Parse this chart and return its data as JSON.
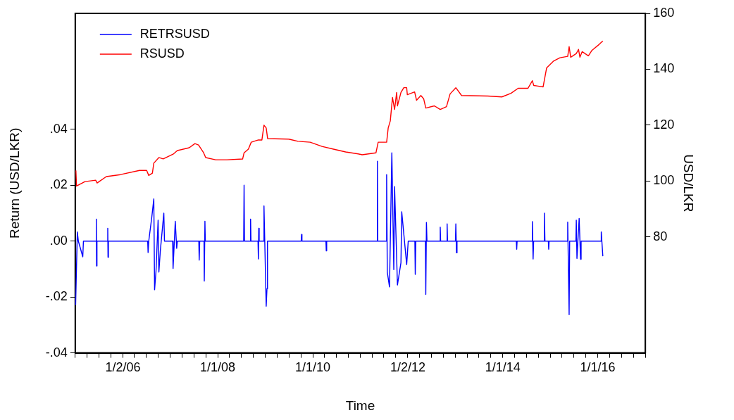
{
  "chart_data": {
    "type": "line",
    "xlabel": "Time",
    "ylabel": "Return (USD/LKR)",
    "y2label": "USD/LKR",
    "xlim": [
      "2005-01-01",
      "2017-01-01"
    ],
    "xticks": [
      {
        "value": "2005-01-01",
        "label": null
      },
      {
        "value": "2005-04-01",
        "label": null
      },
      {
        "value": "2005-07-01",
        "label": null
      },
      {
        "value": "2005-10-01",
        "label": null
      },
      {
        "value": "2006-01-02",
        "label": "1/2/06"
      },
      {
        "value": "2006-04-01",
        "label": null
      },
      {
        "value": "2006-07-01",
        "label": null
      },
      {
        "value": "2006-10-01",
        "label": null
      },
      {
        "value": "2007-01-01",
        "label": null
      },
      {
        "value": "2007-04-01",
        "label": null
      },
      {
        "value": "2007-07-01",
        "label": null
      },
      {
        "value": "2007-10-01",
        "label": null
      },
      {
        "value": "2008-01-01",
        "label": "1/1/08"
      },
      {
        "value": "2008-04-01",
        "label": null
      },
      {
        "value": "2008-07-01",
        "label": null
      },
      {
        "value": "2008-10-01",
        "label": null
      },
      {
        "value": "2009-01-01",
        "label": null
      },
      {
        "value": "2009-04-01",
        "label": null
      },
      {
        "value": "2009-07-01",
        "label": null
      },
      {
        "value": "2009-10-01",
        "label": null
      },
      {
        "value": "2010-01-01",
        "label": "1/1/10"
      },
      {
        "value": "2010-04-01",
        "label": null
      },
      {
        "value": "2010-07-01",
        "label": null
      },
      {
        "value": "2010-10-01",
        "label": null
      },
      {
        "value": "2011-01-01",
        "label": null
      },
      {
        "value": "2011-04-01",
        "label": null
      },
      {
        "value": "2011-07-01",
        "label": null
      },
      {
        "value": "2011-10-01",
        "label": null
      },
      {
        "value": "2012-01-02",
        "label": "1/2/12"
      },
      {
        "value": "2012-04-01",
        "label": null
      },
      {
        "value": "2012-07-01",
        "label": null
      },
      {
        "value": "2012-10-01",
        "label": null
      },
      {
        "value": "2013-01-01",
        "label": null
      },
      {
        "value": "2013-04-01",
        "label": null
      },
      {
        "value": "2013-07-01",
        "label": null
      },
      {
        "value": "2013-10-01",
        "label": null
      },
      {
        "value": "2014-01-01",
        "label": "1/1/14"
      },
      {
        "value": "2014-04-01",
        "label": null
      },
      {
        "value": "2014-07-01",
        "label": null
      },
      {
        "value": "2014-10-01",
        "label": null
      },
      {
        "value": "2015-01-01",
        "label": null
      },
      {
        "value": "2015-04-01",
        "label": null
      },
      {
        "value": "2015-07-01",
        "label": null
      },
      {
        "value": "2015-10-01",
        "label": null
      },
      {
        "value": "2016-01-01",
        "label": "1/1/16"
      },
      {
        "value": "2016-04-01",
        "label": null
      },
      {
        "value": "2016-07-01",
        "label": null
      },
      {
        "value": "2016-10-01",
        "label": null
      },
      {
        "value": "2017-01-01",
        "label": null
      }
    ],
    "ylim": [
      -0.04,
      0.0815
    ],
    "yticks": [
      {
        "value": -0.04,
        "label": "-.04"
      },
      {
        "value": -0.02,
        "label": "-.02"
      },
      {
        "value": 0,
        "label": ".00"
      },
      {
        "value": 0.02,
        "label": ".02"
      },
      {
        "value": 0.04,
        "label": ".04"
      }
    ],
    "y2lim": [
      38.5,
      160
    ],
    "y2ticks": [
      80,
      100,
      120,
      140,
      160
    ],
    "legend": "top left",
    "series": [
      {
        "name": "RETRSUSD",
        "color": "#0000ff",
        "x": [
          "2005-01-04",
          "2005-01-17",
          "2005-01-25",
          "2005-02-28",
          "2005-03-05",
          "2005-06-10",
          "2005-06-12",
          "2005-06-14",
          "2005-06-17",
          "2005-09-05",
          "2005-09-08",
          "2005-09-10",
          "2005-09-13",
          "2006-07-12",
          "2006-07-15",
          "2006-07-20",
          "2006-08-12",
          "2006-08-28",
          "2006-09-03",
          "2006-09-14",
          "2006-09-30",
          "2006-10-06",
          "2006-10-17",
          "2006-11-13",
          "2006-11-18",
          "2007-01-20",
          "2007-01-23",
          "2007-02-09",
          "2007-02-20",
          "2007-02-25",
          "2007-08-09",
          "2007-08-12",
          "2007-08-16",
          "2007-09-18",
          "2007-09-20",
          "2007-09-25",
          "2007-09-28",
          "2008-07-19",
          "2008-07-22",
          "2008-07-25",
          "2008-09-07",
          "2008-09-10",
          "2008-09-13",
          "2008-11-06",
          "2008-11-09",
          "2008-11-12",
          "2008-11-15",
          "2008-12-19",
          "2008-12-22",
          "2009-01-08",
          "2009-01-14",
          "2009-01-18",
          "2009-10-04",
          "2009-10-07",
          "2009-10-10",
          "2010-04-12",
          "2010-04-15",
          "2010-04-18",
          "2011-05-10",
          "2011-05-13",
          "2011-05-16",
          "2011-07-20",
          "2011-07-23",
          "2011-07-28",
          "2011-08-14",
          "2011-09-01",
          "2011-09-16",
          "2011-09-22",
          "2011-10-14",
          "2011-11-10",
          "2011-11-16",
          "2011-12-24",
          "2012-01-05",
          "2012-02-25",
          "2012-02-28",
          "2012-03-03",
          "2012-05-16",
          "2012-05-19",
          "2012-05-24",
          "2012-05-28",
          "2012-09-04",
          "2012-09-07",
          "2012-09-10",
          "2012-10-27",
          "2012-10-30",
          "2012-11-02",
          "2013-01-02",
          "2013-01-05",
          "2013-01-10",
          "2013-01-14",
          "2014-04-15",
          "2014-04-18",
          "2014-04-21",
          "2014-08-13",
          "2014-08-16",
          "2014-08-22",
          "2014-08-26",
          "2014-11-14",
          "2014-11-17",
          "2014-11-21",
          "2014-12-17",
          "2014-12-20",
          "2014-12-23",
          "2015-05-12",
          "2015-05-15",
          "2015-05-26",
          "2015-05-30",
          "2015-07-17",
          "2015-07-20",
          "2015-07-25",
          "2015-08-11",
          "2015-08-22",
          "2015-08-26",
          "2016-01-25",
          "2016-01-28",
          "2016-02-09"
        ],
        "values": [
          -0.0229,
          0.0033,
          0,
          -0.0056,
          0,
          0,
          0.0079,
          -0.0089,
          0,
          0,
          0.0046,
          -0.0058,
          0,
          0,
          -0.0041,
          0,
          0.0084,
          0.0151,
          -0.0174,
          -0.0106,
          0.0075,
          -0.0111,
          -0.0035,
          0.01,
          0,
          0,
          -0.0098,
          0.0071,
          -0.0026,
          0,
          0,
          -0.0068,
          0,
          0,
          -0.0143,
          0.0071,
          0,
          0,
          0.02,
          0,
          0,
          0.0079,
          0,
          0,
          -0.0064,
          0.0046,
          0,
          0,
          0.0126,
          -0.0233,
          -0.017,
          0,
          0,
          0.0024,
          0,
          0,
          -0.0035,
          0,
          0,
          0.0286,
          0,
          0,
          0.0238,
          -0.0111,
          -0.0164,
          0.0316,
          -0.0102,
          0.0195,
          -0.0157,
          -0.0077,
          0.0105,
          -0.0084,
          0,
          0,
          -0.0119,
          0,
          0,
          -0.0191,
          0.0067,
          0,
          0,
          0.005,
          0,
          0,
          0.0062,
          0,
          0,
          0.0062,
          -0.0042,
          0,
          0,
          -0.0029,
          0,
          0,
          0.007,
          -0.0064,
          0,
          0,
          0.01,
          0,
          0,
          -0.0029,
          0,
          0,
          0.0068,
          -0.0263,
          0,
          0,
          0.0075,
          -0.0062,
          0.0081,
          -0.0065,
          0,
          0,
          0.0033,
          -0.0054
        ]
      },
      {
        "name": "RSUSD",
        "color": "#ff0000",
        "axis": "y2",
        "x": [
          "2005-01-06",
          "2005-01-11",
          "2005-03-17",
          "2005-06-07",
          "2005-06-18",
          "2005-08-28",
          "2005-12-15",
          "2006-05-10",
          "2006-07-04",
          "2006-07-20",
          "2006-08-17",
          "2006-08-28",
          "2006-10-06",
          "2006-11-08",
          "2007-01-23",
          "2007-02-25",
          "2007-05-27",
          "2007-07-10",
          "2007-08-07",
          "2007-09-15",
          "2007-10-01",
          "2007-12-16",
          "2008-03-12",
          "2008-07-11",
          "2008-07-22",
          "2008-08-24",
          "2008-09-15",
          "2008-11-09",
          "2008-12-06",
          "2008-12-22",
          "2009-01-08",
          "2009-01-19",
          "2009-06-30",
          "2009-09-10",
          "2009-12-12",
          "2010-03-13",
          "2010-06-09",
          "2010-09-11",
          "2010-12-29",
          "2011-01-15",
          "2011-05-02",
          "2011-05-19",
          "2011-07-23",
          "2011-08-04",
          "2011-08-20",
          "2011-09-06",
          "2011-09-22",
          "2011-10-08",
          "2011-10-14",
          "2011-11-10",
          "2011-12-02",
          "2011-12-24",
          "2011-12-29",
          "2012-02-23",
          "2012-03-09",
          "2012-04-11",
          "2012-05-03",
          "2012-05-19",
          "2012-07-24",
          "2012-09-07",
          "2012-10-25",
          "2012-11-22",
          "2013-01-05",
          "2013-02-18",
          "2013-09-07",
          "2013-12-25",
          "2014-03-05",
          "2014-04-29",
          "2014-07-14",
          "2014-08-16",
          "2014-08-27",
          "2014-11-07",
          "2014-12-04",
          "2015-01-28",
          "2015-03-16",
          "2015-05-15",
          "2015-05-26",
          "2015-06-07",
          "2015-07-20",
          "2015-08-06",
          "2015-08-17",
          "2015-09-03",
          "2015-10-21",
          "2015-11-18",
          "2016-01-12",
          "2016-02-09"
        ],
        "values": [
          103.8,
          98.2,
          99.8,
          100.3,
          99.3,
          101.6,
          102.3,
          103.8,
          103.8,
          102,
          102.8,
          106.4,
          108.4,
          107.9,
          109.6,
          110.9,
          111.9,
          113.4,
          112.9,
          110.1,
          108.4,
          107.6,
          107.6,
          107.9,
          110.1,
          111.4,
          113.9,
          114.7,
          114.7,
          120,
          119,
          115.2,
          115,
          114.2,
          113.9,
          112.4,
          111.4,
          110.4,
          109.6,
          109.4,
          110.1,
          113.9,
          113.9,
          119,
          121.5,
          129.9,
          125.6,
          131.7,
          126.9,
          131.7,
          133.4,
          133.4,
          130.9,
          131.9,
          128.9,
          130.6,
          129.4,
          126.1,
          126.9,
          125.6,
          126.6,
          131.2,
          133.4,
          130.6,
          130.4,
          130.1,
          131.4,
          133.2,
          133.2,
          135.9,
          134.2,
          133.7,
          140.5,
          143,
          144.1,
          144.6,
          148.1,
          144.3,
          145.6,
          147.1,
          144.3,
          146.3,
          144.8,
          146.8,
          148.9,
          150.1
        ]
      }
    ]
  }
}
